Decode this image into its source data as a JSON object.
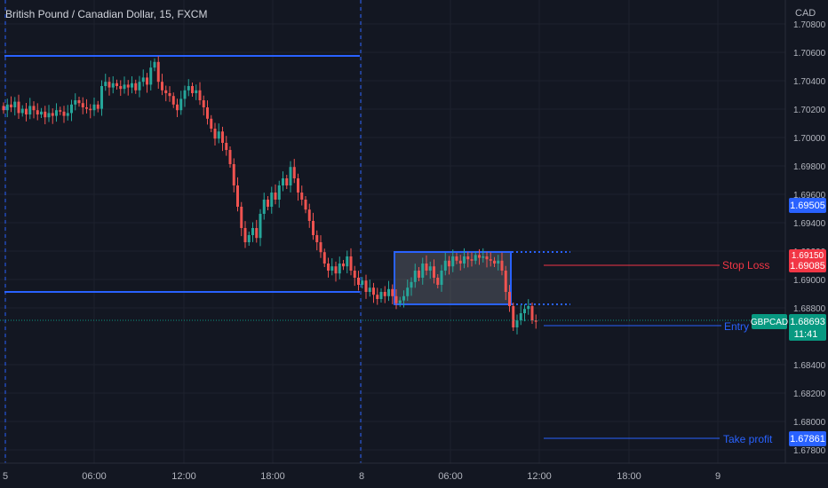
{
  "header": {
    "title": "British Pound / Canadian Dollar, 15, FXCM"
  },
  "price_axis": {
    "currency": "CAD",
    "ticks": [
      "1.70800",
      "1.70600",
      "1.70400",
      "1.70200",
      "1.70000",
      "1.69800",
      "1.69600",
      "1.69400",
      "1.69200",
      "1.69000",
      "1.68800",
      "1.68400",
      "1.68200",
      "1.68000",
      "1.67800"
    ]
  },
  "time_axis": {
    "ticks": [
      "5",
      "06:00",
      "12:00",
      "18:00",
      "8",
      "06:00",
      "12:00",
      "18:00",
      "9"
    ]
  },
  "badges": {
    "level_1": "1.69505",
    "stop_high": "1.69150",
    "stop": "1.69085",
    "symbol": "GBPCAD",
    "last": "1.68693",
    "countdown": "11:41",
    "take_profit": "1.67861"
  },
  "labels": {
    "stop_loss": "Stop Loss",
    "entry": "Entry",
    "take_profit": "Take profit"
  },
  "colors": {
    "background": "#131722",
    "up": "#26a69a",
    "down": "#ef5350",
    "drawing": "#2962ff",
    "stop": "#f23645",
    "entry_badge": "#089981",
    "axis_text": "#b2b5be",
    "grid": "#1e222d"
  },
  "chart_data": {
    "type": "candlestick",
    "title": "British Pound / Canadian Dollar, 15, FXCM",
    "ylabel": "CAD",
    "ylim": [
      1.678,
      1.7085
    ],
    "x_ticks": [
      "5",
      "06:00",
      "12:00",
      "18:00",
      "8",
      "06:00",
      "12:00",
      "18:00",
      "9"
    ],
    "closes": [
      1.7018,
      1.7022,
      1.702,
      1.7024,
      1.7016,
      1.7019,
      1.7015,
      1.7021,
      1.7018,
      1.7015,
      1.7017,
      1.7013,
      1.7016,
      1.7014,
      1.7018,
      1.7017,
      1.7014,
      1.7016,
      1.7022,
      1.7025,
      1.7023,
      1.702,
      1.7019,
      1.7018,
      1.7022,
      1.7019,
      1.7035,
      1.7038,
      1.7034,
      1.7037,
      1.7035,
      1.7033,
      1.7036,
      1.7034,
      1.7037,
      1.7032,
      1.7038,
      1.7041,
      1.7036,
      1.7048,
      1.7052,
      1.7038,
      1.7032,
      1.703,
      1.7028,
      1.7022,
      1.7018,
      1.7026,
      1.7032,
      1.7035,
      1.703,
      1.7032,
      1.7025,
      1.702,
      1.7012,
      1.7005,
      1.6998,
      1.7003,
      1.6995,
      1.699,
      1.698,
      1.6965,
      1.695,
      1.6935,
      1.6925,
      1.693,
      1.6935,
      1.6928,
      1.6945,
      1.6955,
      1.695,
      1.696,
      1.6955,
      1.6965,
      1.697,
      1.6965,
      1.6978,
      1.697,
      1.696,
      1.6955,
      1.6948,
      1.694,
      1.693,
      1.6925,
      1.6918,
      1.691,
      1.6905,
      1.6908,
      1.6903,
      1.691,
      1.6908,
      1.6915,
      1.6905,
      1.69,
      1.6895,
      1.6898,
      1.689,
      1.6893,
      1.6888,
      1.6885,
      1.689,
      1.6887,
      1.6892,
      1.6887,
      1.6882,
      1.6884,
      1.6887,
      1.6893,
      1.6897,
      1.6905,
      1.69,
      1.691,
      1.6905,
      1.6908,
      1.69,
      1.6895,
      1.6905,
      1.6912,
      1.6908,
      1.6915,
      1.6912,
      1.691,
      1.6915,
      1.6913,
      1.6912,
      1.6916,
      1.6914,
      1.6915,
      1.6913,
      1.6912,
      1.691,
      1.6912,
      1.6905,
      1.689,
      1.688,
      1.6865,
      1.687,
      1.6875,
      1.6878,
      1.688,
      1.687,
      1.6869
    ]
  }
}
